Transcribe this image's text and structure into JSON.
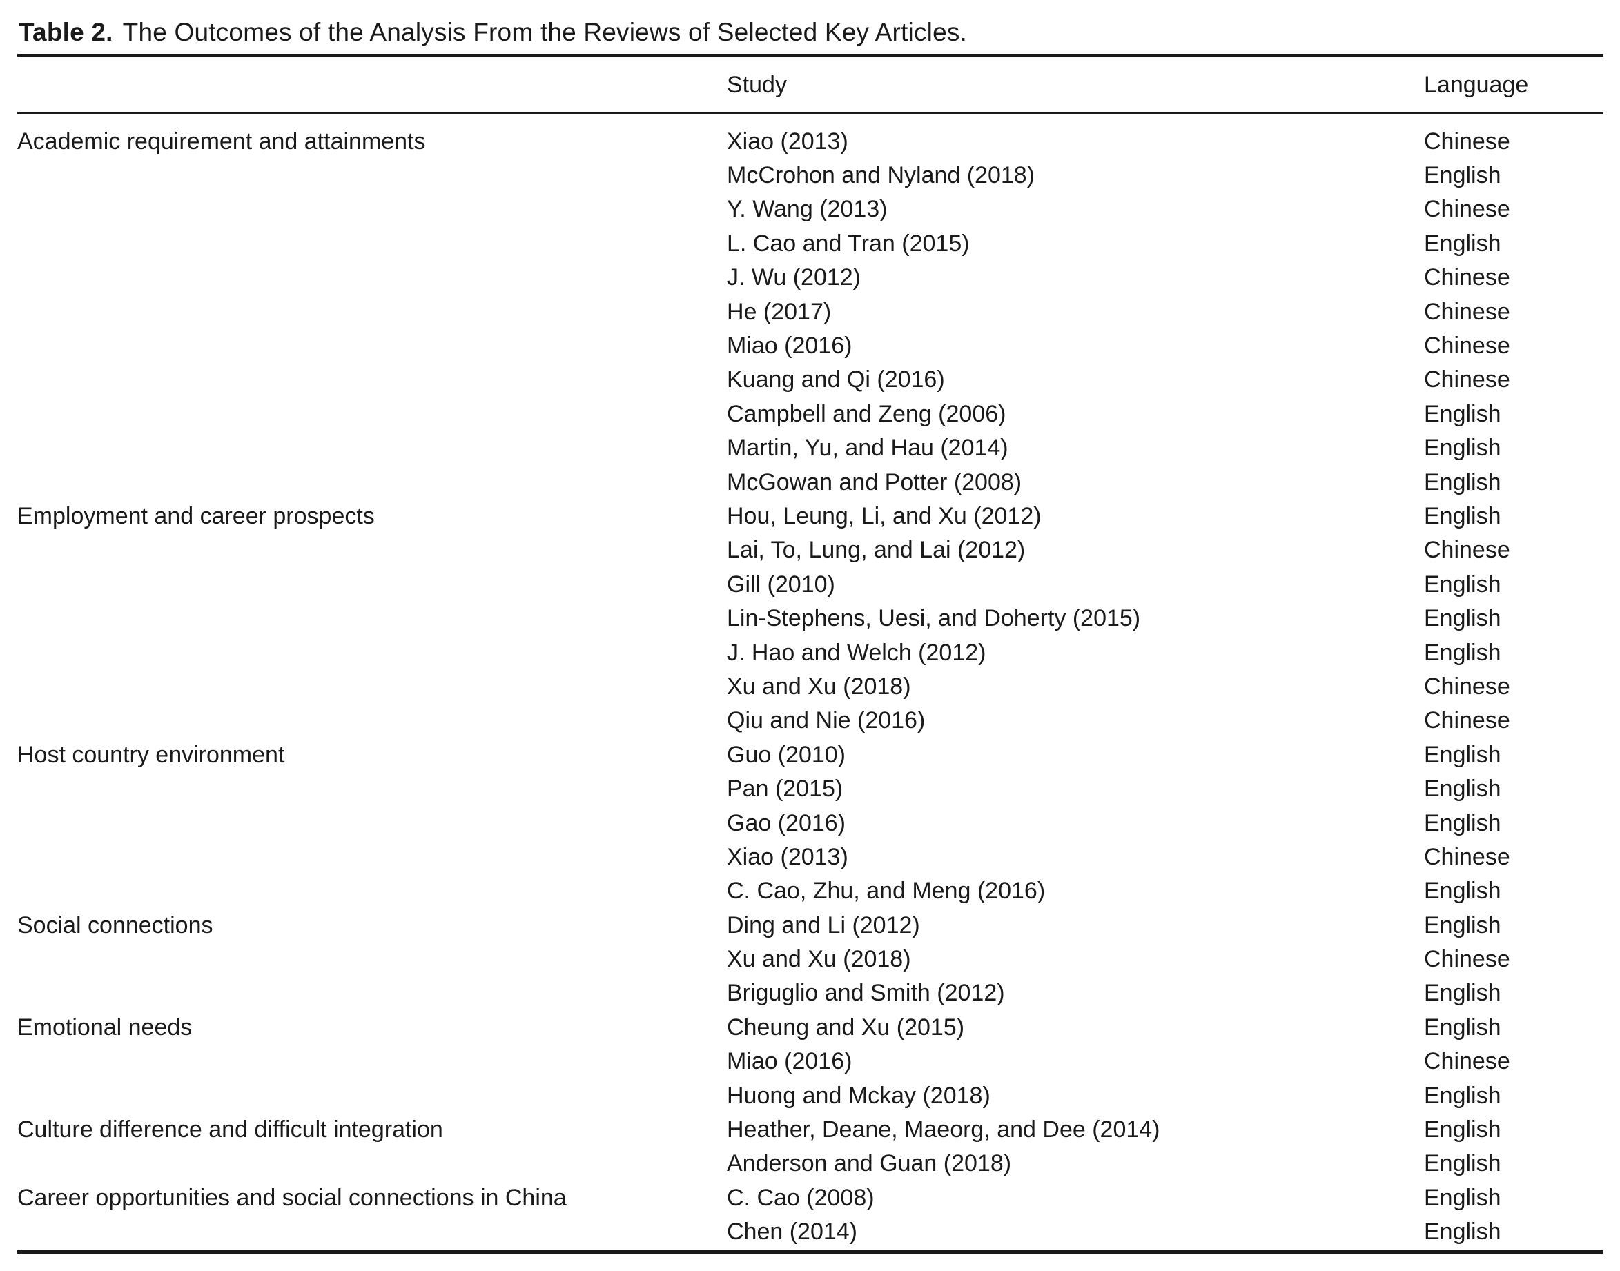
{
  "title": {
    "label": "Table 2.",
    "text": "The Outcomes of the Analysis From the Reviews of Selected Key Articles."
  },
  "table": {
    "headers": {
      "category": "",
      "study": "Study",
      "language": "Language"
    },
    "sections": [
      {
        "category": "Academic requirement and attainments",
        "studies": [
          {
            "study": "Xiao (2013)",
            "language": "Chinese"
          },
          {
            "study": "McCrohon and Nyland (2018)",
            "language": "English"
          },
          {
            "study": "Y. Wang (2013)",
            "language": "Chinese"
          },
          {
            "study": "L. Cao and Tran (2015)",
            "language": "English"
          },
          {
            "study": "J. Wu (2012)",
            "language": "Chinese"
          },
          {
            "study": "He (2017)",
            "language": "Chinese"
          },
          {
            "study": "Miao (2016)",
            "language": "Chinese"
          },
          {
            "study": "Kuang and Qi (2016)",
            "language": "Chinese"
          },
          {
            "study": "Campbell and Zeng (2006)",
            "language": "English"
          },
          {
            "study": "Martin, Yu, and Hau (2014)",
            "language": "English"
          },
          {
            "study": "McGowan and Potter (2008)",
            "language": "English"
          }
        ]
      },
      {
        "category": "Employment and career prospects",
        "studies": [
          {
            "study": "Hou, Leung, Li, and Xu (2012)",
            "language": "English"
          },
          {
            "study": "Lai, To, Lung, and Lai (2012)",
            "language": "Chinese"
          },
          {
            "study": "Gill (2010)",
            "language": "English"
          },
          {
            "study": "Lin-Stephens, Uesi, and Doherty (2015)",
            "language": "English"
          },
          {
            "study": "J. Hao and Welch (2012)",
            "language": "English"
          },
          {
            "study": "Xu and Xu (2018)",
            "language": "Chinese"
          },
          {
            "study": "Qiu and Nie (2016)",
            "language": "Chinese"
          }
        ]
      },
      {
        "category": "Host country environment",
        "studies": [
          {
            "study": "Guo (2010)",
            "language": "English"
          },
          {
            "study": "Pan (2015)",
            "language": "English"
          },
          {
            "study": "Gao (2016)",
            "language": "English"
          },
          {
            "study": "Xiao (2013)",
            "language": "Chinese"
          },
          {
            "study": "C. Cao, Zhu, and Meng (2016)",
            "language": "English"
          }
        ]
      },
      {
        "category": "Social connections",
        "studies": [
          {
            "study": "Ding and Li (2012)",
            "language": "English"
          },
          {
            "study": "Xu and Xu (2018)",
            "language": "Chinese"
          },
          {
            "study": "Briguglio and Smith (2012)",
            "language": "English"
          }
        ]
      },
      {
        "category": "Emotional needs",
        "studies": [
          {
            "study": "Cheung and Xu (2015)",
            "language": "English"
          },
          {
            "study": "Miao (2016)",
            "language": "Chinese"
          },
          {
            "study": "Huong and Mckay (2018)",
            "language": "English"
          }
        ]
      },
      {
        "category": "Culture difference and difficult integration",
        "studies": [
          {
            "study": "Heather, Deane, Maeorg, and Dee (2014)",
            "language": "English"
          },
          {
            "study": "Anderson and Guan (2018)",
            "language": "English"
          }
        ]
      },
      {
        "category": "Career opportunities and social connections in China",
        "studies": [
          {
            "study": "C. Cao (2008)",
            "language": "English"
          },
          {
            "study": "Chen (2014)",
            "language": "English"
          }
        ]
      }
    ]
  },
  "colors": {
    "text": "#1a1a1a",
    "rule": "#1a1a1a",
    "background": "#ffffff"
  }
}
